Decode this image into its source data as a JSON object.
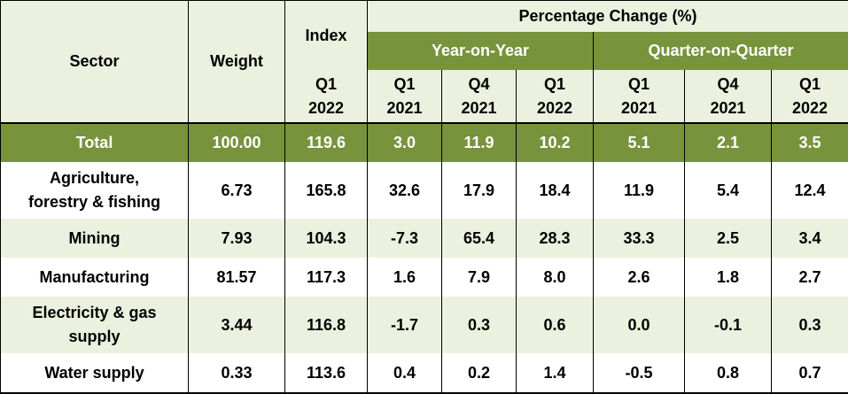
{
  "header": {
    "sector": "Sector",
    "weight": "Weight",
    "index": "Index",
    "pct_change": "Percentage Change (%)",
    "yoy": "Year-on-Year",
    "qoq": "Quarter-on-Quarter",
    "periods": [
      [
        "Q1",
        "2022"
      ],
      [
        "Q1",
        "2021"
      ],
      [
        "Q4",
        "2021"
      ],
      [
        "Q1",
        "2022"
      ],
      [
        "Q1",
        "2021"
      ],
      [
        "Q4",
        "2021"
      ],
      [
        "Q1",
        "2022"
      ]
    ]
  },
  "total": [
    "Total",
    "100.00",
    "119.6",
    "3.0",
    "11.9",
    "10.2",
    "5.1",
    "2.1",
    "3.5"
  ],
  "rows": [
    [
      "Agriculture,",
      "forestry & fishing",
      "6.73",
      "165.8",
      "32.6",
      "17.9",
      "18.4",
      "11.9",
      "5.4",
      "12.4"
    ],
    [
      "Mining",
      "",
      "7.93",
      "104.3",
      "-7.3",
      "65.4",
      "28.3",
      "33.3",
      "2.5",
      "3.4"
    ],
    [
      "Manufacturing",
      "",
      "81.57",
      "117.3",
      "1.6",
      "7.9",
      "8.0",
      "2.6",
      "1.8",
      "2.7"
    ],
    [
      "Electricity & gas",
      "supply",
      "3.44",
      "116.8",
      "-1.7",
      "0.3",
      "0.6",
      "0.0",
      "-0.1",
      "0.3"
    ],
    [
      "Water supply",
      "",
      "0.33",
      "113.6",
      "0.4",
      "0.2",
      "1.4",
      "-0.5",
      "0.8",
      "0.7"
    ]
  ]
}
